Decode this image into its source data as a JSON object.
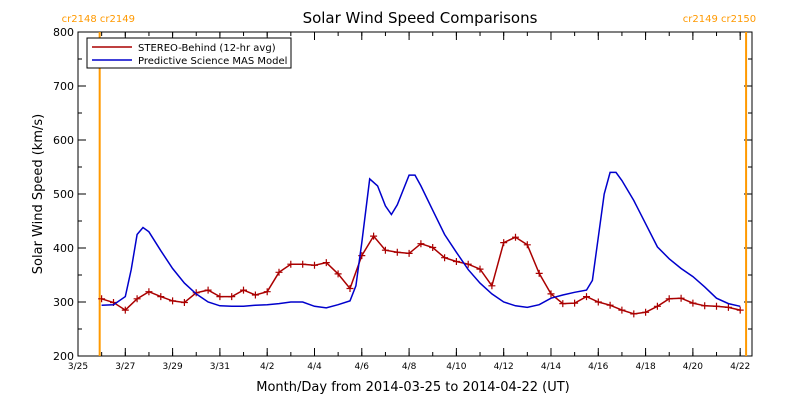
{
  "chart_data": {
    "type": "line",
    "title": "Solar Wind Speed Comparisons",
    "xlabel": "Month/Day from 2014-03-25 to 2014-04-22 (UT)",
    "ylabel": "Solar Wind Speed (km/s)",
    "ylim": [
      200,
      800
    ],
    "yticks": [
      200,
      300,
      400,
      500,
      600,
      700,
      800
    ],
    "xlim": [
      "2014-03-25",
      "2014-04-22T12:00"
    ],
    "xticks": [
      {
        "date": "2014-03-25",
        "label": "3/25"
      },
      {
        "date": "2014-03-27",
        "label": "3/27"
      },
      {
        "date": "2014-03-29",
        "label": "3/29"
      },
      {
        "date": "2014-03-31",
        "label": "3/31"
      },
      {
        "date": "2014-04-02",
        "label": "4/2"
      },
      {
        "date": "2014-04-04",
        "label": "4/4"
      },
      {
        "date": "2014-04-06",
        "label": "4/6"
      },
      {
        "date": "2014-04-08",
        "label": "4/8"
      },
      {
        "date": "2014-04-10",
        "label": "4/10"
      },
      {
        "date": "2014-04-12",
        "label": "4/12"
      },
      {
        "date": "2014-04-14",
        "label": "4/14"
      },
      {
        "date": "2014-04-16",
        "label": "4/16"
      },
      {
        "date": "2014-04-18",
        "label": "4/18"
      },
      {
        "date": "2014-04-20",
        "label": "4/20"
      },
      {
        "date": "2014-04-22",
        "label": "4/22"
      }
    ],
    "legend_position": "top-left",
    "series": [
      {
        "name": "STEREO-Behind (12-hr avg)",
        "color": "#aa0000",
        "marker": "plus",
        "points": [
          [
            "2014-03-26T00:00",
            306
          ],
          [
            "2014-03-26T12:00",
            299
          ],
          [
            "2014-03-27T00:00",
            285
          ],
          [
            "2014-03-27T12:00",
            306
          ],
          [
            "2014-03-28T00:00",
            319
          ],
          [
            "2014-03-28T12:00",
            310
          ],
          [
            "2014-03-29T00:00",
            302
          ],
          [
            "2014-03-29T12:00",
            299
          ],
          [
            "2014-03-30T00:00",
            317
          ],
          [
            "2014-03-30T12:00",
            322
          ],
          [
            "2014-03-31T00:00",
            310
          ],
          [
            "2014-03-31T12:00",
            310
          ],
          [
            "2014-04-01T00:00",
            322
          ],
          [
            "2014-04-01T12:00",
            313
          ],
          [
            "2014-04-02T00:00",
            319
          ],
          [
            "2014-04-02T12:00",
            355
          ],
          [
            "2014-04-03T00:00",
            370
          ],
          [
            "2014-04-03T12:00",
            370
          ],
          [
            "2014-04-04T00:00",
            368
          ],
          [
            "2014-04-04T12:00",
            373
          ],
          [
            "2014-04-05T00:00",
            352
          ],
          [
            "2014-04-05T12:00",
            325
          ],
          [
            "2014-04-06T00:00",
            386
          ],
          [
            "2014-04-06T12:00",
            422
          ],
          [
            "2014-04-07T00:00",
            396
          ],
          [
            "2014-04-07T12:00",
            392
          ],
          [
            "2014-04-08T00:00",
            390
          ],
          [
            "2014-04-08T12:00",
            408
          ],
          [
            "2014-04-09T00:00",
            401
          ],
          [
            "2014-04-09T12:00",
            382
          ],
          [
            "2014-04-10T00:00",
            375
          ],
          [
            "2014-04-10T12:00",
            370
          ],
          [
            "2014-04-11T00:00",
            361
          ],
          [
            "2014-04-11T12:00",
            330
          ],
          [
            "2014-04-12T00:00",
            410
          ],
          [
            "2014-04-12T12:00",
            420
          ],
          [
            "2014-04-13T00:00",
            406
          ],
          [
            "2014-04-13T12:00",
            353
          ],
          [
            "2014-04-14T00:00",
            315
          ],
          [
            "2014-04-14T12:00",
            297
          ],
          [
            "2014-04-15T00:00",
            298
          ],
          [
            "2014-04-15T12:00",
            310
          ],
          [
            "2014-04-16T00:00",
            300
          ],
          [
            "2014-04-16T12:00",
            294
          ],
          [
            "2014-04-17T00:00",
            285
          ],
          [
            "2014-04-17T12:00",
            278
          ],
          [
            "2014-04-18T00:00",
            281
          ],
          [
            "2014-04-18T12:00",
            292
          ],
          [
            "2014-04-19T00:00",
            306
          ],
          [
            "2014-04-19T12:00",
            307
          ],
          [
            "2014-04-20T00:00",
            298
          ],
          [
            "2014-04-20T12:00",
            293
          ],
          [
            "2014-04-21T00:00",
            292
          ],
          [
            "2014-04-21T12:00",
            290
          ],
          [
            "2014-04-22T00:00",
            285
          ]
        ]
      },
      {
        "name": "Predictive Science MAS Model",
        "color": "#0000cc",
        "marker": "none",
        "points": [
          [
            "2014-03-26T00:00",
            294
          ],
          [
            "2014-03-26T12:00",
            295
          ],
          [
            "2014-03-27T00:00",
            310
          ],
          [
            "2014-03-27T06:00",
            360
          ],
          [
            "2014-03-27T12:00",
            425
          ],
          [
            "2014-03-27T18:00",
            438
          ],
          [
            "2014-03-28T00:00",
            430
          ],
          [
            "2014-03-28T12:00",
            395
          ],
          [
            "2014-03-29T00:00",
            362
          ],
          [
            "2014-03-29T12:00",
            335
          ],
          [
            "2014-03-30T00:00",
            315
          ],
          [
            "2014-03-30T12:00",
            300
          ],
          [
            "2014-03-31T00:00",
            293
          ],
          [
            "2014-03-31T12:00",
            292
          ],
          [
            "2014-04-01T00:00",
            292
          ],
          [
            "2014-04-01T12:00",
            294
          ],
          [
            "2014-04-02T00:00",
            295
          ],
          [
            "2014-04-02T12:00",
            297
          ],
          [
            "2014-04-03T00:00",
            300
          ],
          [
            "2014-04-03T12:00",
            300
          ],
          [
            "2014-04-04T00:00",
            292
          ],
          [
            "2014-04-04T12:00",
            289
          ],
          [
            "2014-04-05T00:00",
            295
          ],
          [
            "2014-04-05T12:00",
            302
          ],
          [
            "2014-04-05T18:00",
            330
          ],
          [
            "2014-04-06T00:00",
            410
          ],
          [
            "2014-04-06T08:00",
            528
          ],
          [
            "2014-04-06T16:00",
            515
          ],
          [
            "2014-04-07T00:00",
            478
          ],
          [
            "2014-04-07T06:00",
            462
          ],
          [
            "2014-04-07T12:00",
            480
          ],
          [
            "2014-04-08T00:00",
            535
          ],
          [
            "2014-04-08T06:00",
            535
          ],
          [
            "2014-04-08T12:00",
            515
          ],
          [
            "2014-04-09T00:00",
            470
          ],
          [
            "2014-04-09T12:00",
            425
          ],
          [
            "2014-04-10T00:00",
            392
          ],
          [
            "2014-04-10T12:00",
            360
          ],
          [
            "2014-04-11T00:00",
            335
          ],
          [
            "2014-04-11T12:00",
            315
          ],
          [
            "2014-04-12T00:00",
            300
          ],
          [
            "2014-04-12T12:00",
            293
          ],
          [
            "2014-04-13T00:00",
            290
          ],
          [
            "2014-04-13T12:00",
            295
          ],
          [
            "2014-04-14T00:00",
            307
          ],
          [
            "2014-04-14T12:00",
            313
          ],
          [
            "2014-04-15T00:00",
            318
          ],
          [
            "2014-04-15T12:00",
            322
          ],
          [
            "2014-04-15T18:00",
            340
          ],
          [
            "2014-04-16T00:00",
            420
          ],
          [
            "2014-04-16T06:00",
            500
          ],
          [
            "2014-04-16T12:00",
            540
          ],
          [
            "2014-04-16T18:00",
            540
          ],
          [
            "2014-04-17T00:00",
            525
          ],
          [
            "2014-04-17T12:00",
            488
          ],
          [
            "2014-04-18T00:00",
            445
          ],
          [
            "2014-04-18T12:00",
            402
          ],
          [
            "2014-04-19T00:00",
            380
          ],
          [
            "2014-04-19T12:00",
            362
          ],
          [
            "2014-04-20T00:00",
            347
          ],
          [
            "2014-04-20T12:00",
            328
          ],
          [
            "2014-04-21T00:00",
            307
          ],
          [
            "2014-04-21T12:00",
            297
          ],
          [
            "2014-04-22T00:00",
            292
          ]
        ]
      }
    ],
    "carrington_markers": [
      {
        "date": "2014-03-25T22:00",
        "label": "cr2148 cr2149",
        "label_align": "start"
      },
      {
        "date": "2014-04-22T06:00",
        "label": "cr2149 cr2150",
        "label_align": "end"
      }
    ],
    "marker_color": "#ff9900"
  }
}
